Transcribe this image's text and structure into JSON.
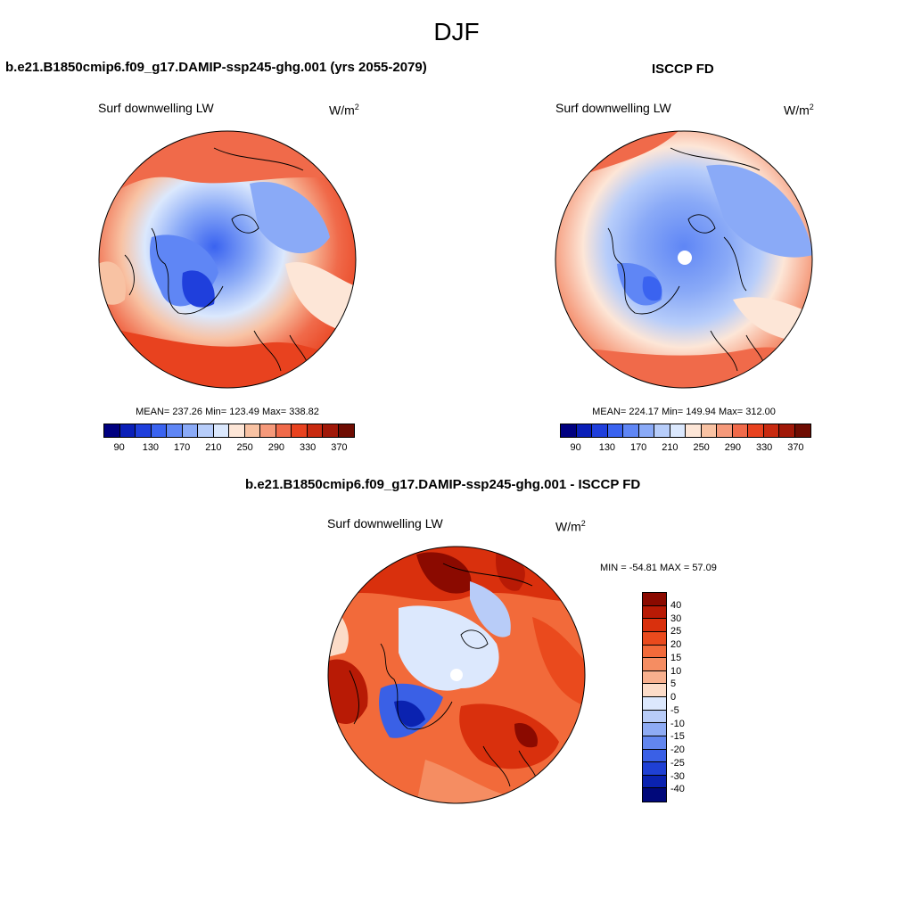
{
  "figure": {
    "season": "DJF"
  },
  "panels": [
    {
      "title": "b.e21.B1850cmip6.f09_g17.DAMIP-ssp245-ghg.001 (yrs 2055-2079)",
      "variable": "Surf downwelling LW",
      "units_base": "W/m",
      "units_exp": "2",
      "stats": "MEAN= 237.26  Min= 123.49  Max= 338.82",
      "colorbar_ticks": [
        "90",
        "130",
        "170",
        "210",
        "250",
        "290",
        "330",
        "370"
      ]
    },
    {
      "title": "ISCCP FD",
      "variable": "Surf downwelling LW",
      "units_base": "W/m",
      "units_exp": "2",
      "stats": "MEAN= 224.17  Min= 149.94  Max= 312.00",
      "colorbar_ticks": [
        "90",
        "130",
        "170",
        "210",
        "250",
        "290",
        "330",
        "370"
      ]
    },
    {
      "title": "b.e21.B1850cmip6.f09_g17.DAMIP-ssp245-ghg.001 - ISCCP FD",
      "variable": "Surf downwelling LW",
      "units_base": "W/m",
      "units_exp": "2",
      "stats": "MIN = -54.81 MAX =  57.09",
      "colorbar_ticks": [
        "40",
        "30",
        "25",
        "20",
        "15",
        "10",
        "5",
        "0",
        "-5",
        "-10",
        "-15",
        "-20",
        "-25",
        "-30",
        "-40"
      ]
    }
  ],
  "colors": {
    "abs_scale": [
      "#000080",
      "#0a1fb8",
      "#1f3fdc",
      "#3a63f0",
      "#5f86f5",
      "#8aaaf7",
      "#b7cdfa",
      "#dbe8fd",
      "#fde6d7",
      "#f8c2a3",
      "#f5997a",
      "#f06a4a",
      "#e8421f",
      "#c82a10",
      "#a01808",
      "#6e0c02"
    ],
    "diff_scale": [
      "#8b0a00",
      "#b81a05",
      "#d9300d",
      "#ea4a1d",
      "#f26a3a",
      "#f58d62",
      "#f8b08e",
      "#fcdcc8",
      "#dce8fd",
      "#b8ccf8",
      "#8eabf4",
      "#6286ef",
      "#3a60e6",
      "#1f40d4",
      "#0a22b0",
      "#00087a"
    ],
    "coastline": "#000000"
  },
  "chart_data": [
    {
      "type": "heatmap",
      "projection": "north-polar-stereographic",
      "title": "b.e21.B1850cmip6.f09_g17.DAMIP-ssp245-ghg.001 (yrs 2055-2079)",
      "variable": "Surf downwelling LW",
      "units": "W/m2",
      "mean": 237.26,
      "min": 123.49,
      "max": 338.82,
      "levels": [
        90,
        110,
        130,
        150,
        170,
        190,
        210,
        230,
        250,
        270,
        290,
        310,
        330,
        350,
        370
      ]
    },
    {
      "type": "heatmap",
      "projection": "north-polar-stereographic",
      "title": "ISCCP FD",
      "variable": "Surf downwelling LW",
      "units": "W/m2",
      "mean": 224.17,
      "min": 149.94,
      "max": 312.0,
      "levels": [
        90,
        110,
        130,
        150,
        170,
        190,
        210,
        230,
        250,
        270,
        290,
        310,
        330,
        350,
        370
      ]
    },
    {
      "type": "heatmap",
      "projection": "north-polar-stereographic",
      "title": "b.e21.B1850cmip6.f09_g17.DAMIP-ssp245-ghg.001 - ISCCP FD",
      "variable": "Surf downwelling LW",
      "units": "W/m2",
      "min": -54.81,
      "max": 57.09,
      "levels": [
        -40,
        -30,
        -25,
        -20,
        -15,
        -10,
        -5,
        0,
        5,
        10,
        15,
        20,
        25,
        30,
        40
      ]
    }
  ]
}
